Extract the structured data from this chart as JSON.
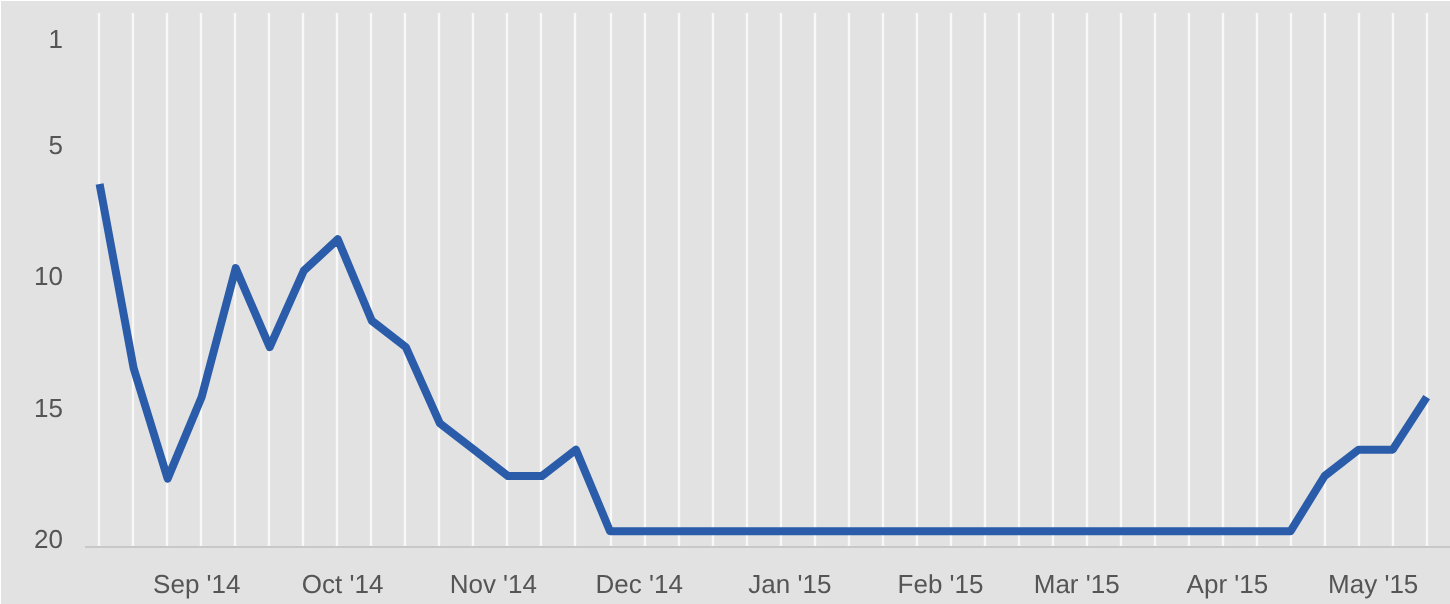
{
  "chart_data": {
    "type": "line",
    "x": [
      "2014-08-12",
      "2014-08-19",
      "2014-08-26",
      "2014-09-02",
      "2014-09-09",
      "2014-09-16",
      "2014-09-23",
      "2014-09-30",
      "2014-10-07",
      "2014-10-14",
      "2014-10-21",
      "2014-10-28",
      "2014-11-04",
      "2014-11-11",
      "2014-11-18",
      "2014-11-25",
      "2014-12-02",
      "2014-12-09",
      "2014-12-16",
      "2014-12-23",
      "2014-12-30",
      "2015-01-06",
      "2015-01-13",
      "2015-01-20",
      "2015-01-27",
      "2015-02-03",
      "2015-02-10",
      "2015-02-17",
      "2015-02-24",
      "2015-03-03",
      "2015-03-10",
      "2015-03-17",
      "2015-03-24",
      "2015-03-31",
      "2015-04-07",
      "2015-04-14",
      "2015-04-21",
      "2015-04-28",
      "2015-05-05",
      "2015-05-12"
    ],
    "series": [
      {
        "color": "#2a5caa",
        "values": [
          6.5,
          13.5,
          17.7,
          14.6,
          9.7,
          12.7,
          9.8,
          8.6,
          11.7,
          12.7,
          15.6,
          16.6,
          17.6,
          17.6,
          16.6,
          19.7,
          19.7,
          19.7,
          19.7,
          19.7,
          19.7,
          19.7,
          19.7,
          19.7,
          19.7,
          19.7,
          19.7,
          19.7,
          19.7,
          19.7,
          19.7,
          19.7,
          19.7,
          19.7,
          19.7,
          19.7,
          17.6,
          16.6,
          16.6,
          14.6
        ]
      }
    ],
    "xlim": [
      "2014-08-09",
      "2015-05-17"
    ],
    "xticks": [
      {
        "value": "2014-09-01",
        "label": "Sep '14"
      },
      {
        "value": "2014-10-01",
        "label": "Oct '14"
      },
      {
        "value": "2014-11-01",
        "label": "Nov '14"
      },
      {
        "value": "2014-12-01",
        "label": "Dec '14"
      },
      {
        "value": "2015-01-01",
        "label": "Jan '15"
      },
      {
        "value": "2015-02-01",
        "label": "Feb '15"
      },
      {
        "value": "2015-03-01",
        "label": "Mar '15"
      },
      {
        "value": "2015-04-01",
        "label": "Apr '15"
      },
      {
        "value": "2015-05-01",
        "label": "May '15"
      }
    ],
    "ylim": [
      20.3,
      0
    ],
    "yticks": [
      1,
      5,
      10,
      15,
      20
    ],
    "grid": "x",
    "marker": "none",
    "line_style": "solid"
  }
}
